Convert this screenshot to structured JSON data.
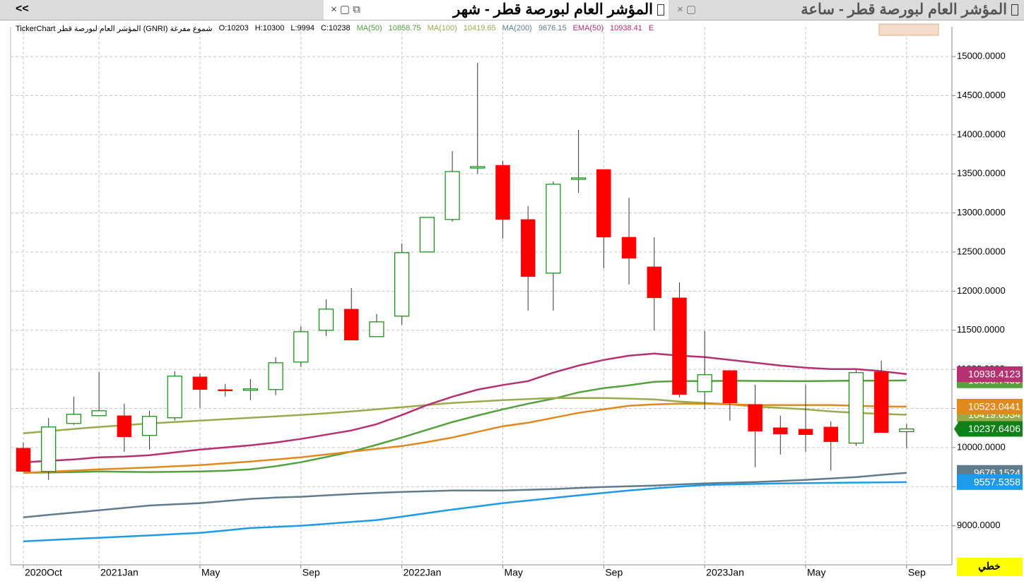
{
  "tabs": [
    "المؤشر العام لبورصة قطر - ساعة",
    "المؤشر العام لبورصة قطر - شهر"
  ],
  "collapse": "<<",
  "chart_data": {
    "type": "candlestick",
    "info": "TickerChart المؤشر العام لبورصة قطر (GNRI)  شموع مفرغة",
    "ohlc_labels": [
      "O:10203",
      "H:10300",
      "L:9994",
      "C:10238"
    ],
    "categories": [
      "2020Oct",
      null,
      null,
      "2021Jan",
      null,
      null,
      null,
      "May",
      null,
      null,
      null,
      "Sep",
      null,
      null,
      null,
      "2022Jan",
      null,
      null,
      null,
      "May",
      null,
      null,
      null,
      "Sep",
      null,
      null,
      null,
      "2023Jan",
      null,
      null,
      null,
      "May",
      null,
      null,
      null,
      "Sep"
    ],
    "open": [
      9992,
      9694,
      10308,
      10407,
      10407,
      10155,
      10380,
      10904,
      10741,
      10732,
      10741,
      11093,
      11499,
      11770,
      11418,
      11680,
      12501,
      12916,
      13574,
      13610,
      12916,
      12230,
      13430,
      13556,
      12690,
      12311,
      11914,
      10714,
      10985,
      10552,
      10254,
      10236,
      10263,
      10056,
      10967,
      10203
    ],
    "high": [
      10064,
      10380,
      10651,
      10967,
      10561,
      10470,
      10976,
      10949,
      10813,
      10876,
      11156,
      11553,
      11896,
      12040,
      11707,
      12609,
      12943,
      13791,
      14919,
      13665,
      13087,
      13403,
      14062,
      13556,
      13195,
      12690,
      12113,
      11490,
      10985,
      10804,
      10407,
      10804,
      10335,
      10994,
      11111,
      10300
    ],
    "low": [
      9694,
      9586,
      10290,
      10398,
      9947,
      9974,
      10344,
      10507,
      10651,
      10606,
      10669,
      11030,
      11427,
      11373,
      11418,
      11571,
      12501,
      12889,
      13502,
      12672,
      11752,
      11752,
      13259,
      12293,
      12086,
      11499,
      10642,
      10488,
      10344,
      9749,
      9911,
      9947,
      9703,
      10020,
      10191,
      9994
    ],
    "close": [
      9694,
      10263,
      10425,
      10470,
      10137,
      10398,
      10913,
      10741,
      10732,
      10750,
      11084,
      11481,
      11770,
      11373,
      11607,
      12492,
      12943,
      13529,
      13592,
      12916,
      12185,
      13367,
      13448,
      12690,
      12419,
      11914,
      10678,
      10931,
      10570,
      10209,
      10173,
      10164,
      10074,
      10958,
      10191,
      10237.6406
    ],
    "last_close_label": "10237.6406",
    "up_color": "#0a8a0a",
    "down_color": "#ff0000",
    "close_tag_color": "#128018",
    "series": [
      {
        "name": "MA(50)",
        "legend_value": "10858.75",
        "color": "#55a03f",
        "last_label": "10858.7469",
        "values": [
          9677,
          9680,
          9686,
          9694,
          9690,
          9686,
          9690,
          9694,
          9703,
          9721,
          9760,
          9812,
          9878,
          9947,
          10035,
          10128,
          10227,
          10326,
          10410,
          10488,
          10560,
          10624,
          10705,
          10759,
          10795,
          10840,
          10849,
          10849,
          10855,
          10852,
          10850,
          10848,
          10852,
          10856,
          10855,
          10858.7469
        ]
      },
      {
        "name": "MA(100)",
        "legend_value": "10419.65",
        "color": "#9aab4e",
        "last_label": "10419.6534",
        "values": [
          10182,
          10210,
          10237,
          10263,
          10285,
          10308,
          10326,
          10344,
          10362,
          10380,
          10398,
          10416,
          10438,
          10461,
          10488,
          10516,
          10543,
          10570,
          10588,
          10606,
          10620,
          10633,
          10633,
          10633,
          10625,
          10615,
          10588,
          10570,
          10552,
          10525,
          10507,
          10488,
          10461,
          10443,
          10430,
          10419.6534
        ]
      },
      {
        "name": "MA(200)",
        "legend_value": "9676.15",
        "color": "#5f7c8c",
        "last_label": "9676.1524",
        "values": [
          9108,
          9138,
          9168,
          9198,
          9228,
          9258,
          9274,
          9289,
          9316,
          9343,
          9360,
          9370,
          9388,
          9406,
          9420,
          9433,
          9442,
          9451,
          9451,
          9451,
          9460,
          9469,
          9483,
          9496,
          9505,
          9514,
          9528,
          9541,
          9550,
          9559,
          9572,
          9586,
          9604,
          9622,
          9650,
          9676.1524
        ]
      },
      {
        "name": "EMA(50)",
        "legend_value": "10938.41",
        "color": "#b5316f",
        "last_label": "10938.4123",
        "values": [
          9812,
          9830,
          9848,
          9875,
          9884,
          9902,
          9938,
          9974,
          10001,
          10028,
          10065,
          10110,
          10164,
          10218,
          10299,
          10416,
          10543,
          10650,
          10740,
          10800,
          10849,
          10958,
          11048,
          11120,
          11174,
          11201,
          11174,
          11156,
          11120,
          11084,
          11048,
          11021,
          11003,
          11003,
          10976,
          10938.4123
        ]
      },
      {
        "color": "#e0891c",
        "last_label": "10523.0441",
        "values": [
          9677,
          9690,
          9705,
          9721,
          9732,
          9745,
          9760,
          9776,
          9798,
          9821,
          9848,
          9875,
          9910,
          9947,
          9983,
          10019,
          10070,
          10128,
          10200,
          10272,
          10317,
          10380,
          10443,
          10488,
          10534,
          10552,
          10561,
          10561,
          10552,
          10543,
          10543,
          10543,
          10543,
          10534,
          10525,
          10523.0441
        ]
      },
      {
        "color": "#1e9be8",
        "last_label": "9557.5358",
        "values": [
          8801,
          8816,
          8831,
          8846,
          8861,
          8876,
          8893,
          8909,
          8939,
          8970,
          8985,
          9000,
          9024,
          9048,
          9072,
          9117,
          9162,
          9207,
          9248,
          9289,
          9322,
          9355,
          9388,
          9420,
          9450,
          9478,
          9500,
          9520,
          9528,
          9535,
          9540,
          9545,
          9548,
          9552,
          9555,
          9557.5358
        ]
      }
    ],
    "legend_more": "E",
    "ylim": [
      8500,
      15380
    ],
    "yticks": [
      {
        "value": 9000,
        "label": "9000.0000"
      },
      {
        "value": 9500,
        "label": "9500.0000"
      },
      {
        "value": 10000,
        "label": "10000.0000"
      },
      {
        "value": 10500,
        "label": "10500.0000"
      },
      {
        "value": 11000,
        "label": "11000.0000"
      },
      {
        "value": 11500,
        "label": "11500.0000"
      },
      {
        "value": 12000,
        "label": "12000.0000"
      },
      {
        "value": 12500,
        "label": "12500.0000"
      },
      {
        "value": 13000,
        "label": "13000.0000"
      },
      {
        "value": 13500,
        "label": "13500.0000"
      },
      {
        "value": 14000,
        "label": "14000.0000"
      },
      {
        "value": 14500,
        "label": "14500.0000"
      },
      {
        "value": 15000,
        "label": "15000.0000"
      }
    ],
    "grid": true,
    "style_label": "خطي"
  }
}
